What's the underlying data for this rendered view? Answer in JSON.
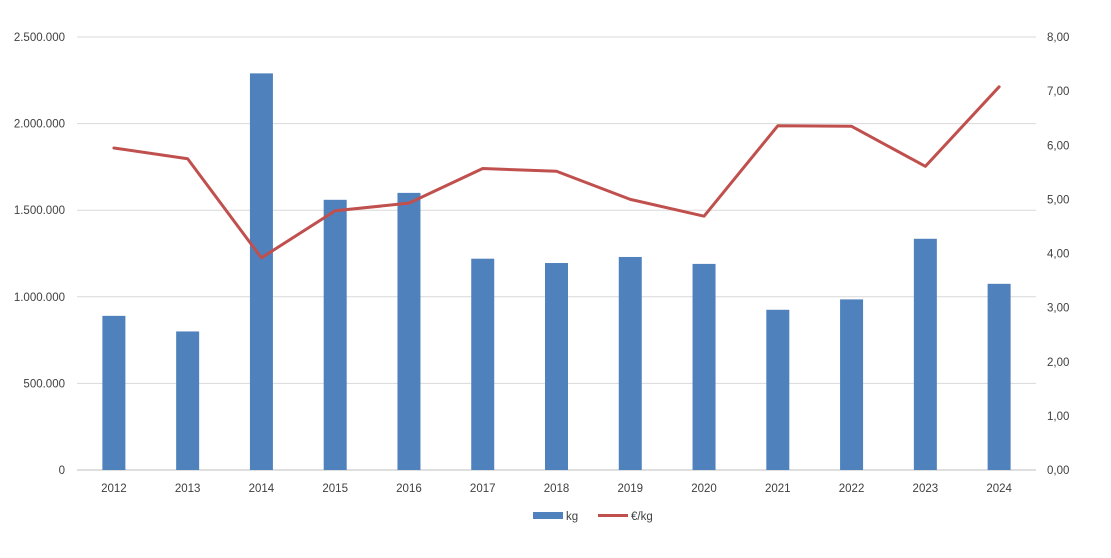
{
  "chart_data": {
    "type": "bar",
    "categories": [
      "2012",
      "2013",
      "2014",
      "2015",
      "2016",
      "2017",
      "2018",
      "2019",
      "2020",
      "2021",
      "2022",
      "2023",
      "2024"
    ],
    "series": [
      {
        "name": "kg",
        "type": "bar",
        "axis": "left",
        "color": "#4F81BD",
        "values": [
          890000,
          800000,
          2290000,
          1560000,
          1600000,
          1220000,
          1195000,
          1230000,
          1190000,
          925000,
          985000,
          1335000,
          1075000
        ]
      },
      {
        "name": "€/kg",
        "type": "line",
        "axis": "right",
        "color": "#C0504D",
        "values": [
          5.95,
          5.75,
          3.92,
          4.79,
          4.93,
          5.57,
          5.52,
          5.0,
          4.69,
          6.36,
          6.35,
          5.61,
          7.08
        ]
      }
    ],
    "y_left": {
      "ylim": [
        0,
        2500000
      ],
      "ticks": [
        0,
        500000,
        1000000,
        1500000,
        2000000,
        2500000
      ],
      "tick_labels": [
        "0",
        "500.000",
        "1.000.000",
        "1.500.000",
        "2.000.000",
        "2.500.000"
      ]
    },
    "y_right": {
      "ylim": [
        0,
        8
      ],
      "ticks": [
        0,
        1,
        2,
        3,
        4,
        5,
        6,
        7,
        8
      ],
      "tick_labels": [
        "0,00",
        "1,00",
        "2,00",
        "3,00",
        "4,00",
        "5,00",
        "6,00",
        "7,00",
        "8,00"
      ]
    },
    "grid": true,
    "legend_position": "bottom-center",
    "title": "",
    "xlabel": "",
    "ylabel": ""
  }
}
